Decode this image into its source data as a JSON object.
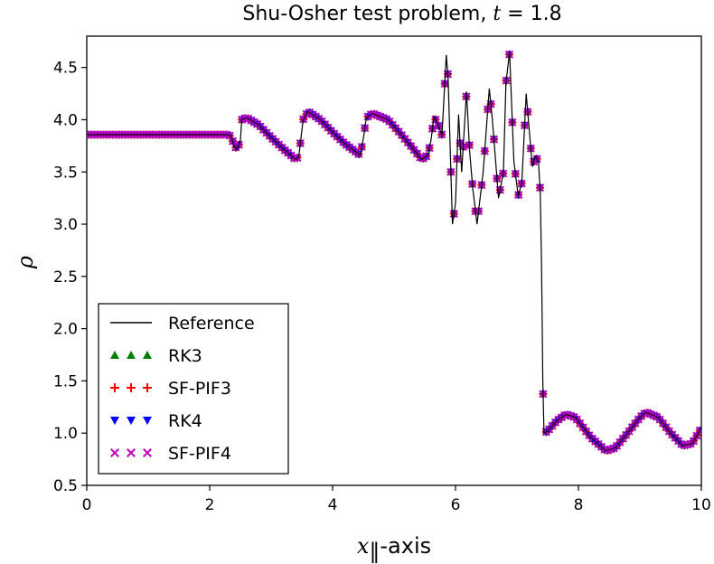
{
  "chart_data": {
    "type": "line",
    "title": {
      "text": "Shu-Osher test problem, ",
      "math": "t",
      "math_suffix": " = 1.8"
    },
    "xlabel": {
      "math": "x",
      "subscript": "∥",
      "text": "-axis"
    },
    "ylabel": "ρ",
    "xlim": [
      0,
      10
    ],
    "ylim": [
      0.5,
      4.8
    ],
    "xticks": [
      "0",
      "2",
      "4",
      "6",
      "8",
      "10"
    ],
    "yticks": [
      "0.5",
      "1.0",
      "1.5",
      "2.0",
      "2.5",
      "3.0",
      "3.5",
      "4.0",
      "4.5"
    ],
    "grid": false,
    "legend_position": "lower-left",
    "series": [
      {
        "name": "Reference",
        "style": "line",
        "color": "#000000"
      },
      {
        "name": "RK3",
        "style": "marker",
        "marker": "triangle-up",
        "color": "#008000"
      },
      {
        "name": "SF-PIF3",
        "style": "marker",
        "marker": "plus",
        "color": "#ff0000"
      },
      {
        "name": "RK4",
        "style": "marker",
        "marker": "triangle-down",
        "color": "#0000ff"
      },
      {
        "name": "SF-PIF4",
        "style": "marker",
        "marker": "x",
        "color": "#bf00bf"
      }
    ],
    "reference_points": [
      [
        0.0,
        3.857
      ],
      [
        2.1,
        3.857
      ],
      [
        2.3,
        3.857
      ],
      [
        2.35,
        3.84
      ],
      [
        2.4,
        3.75
      ],
      [
        2.45,
        3.72
      ],
      [
        2.5,
        3.8
      ],
      [
        2.52,
        4.0
      ],
      [
        2.6,
        4.02
      ],
      [
        2.8,
        3.95
      ],
      [
        3.0,
        3.83
      ],
      [
        3.2,
        3.72
      ],
      [
        3.4,
        3.62
      ],
      [
        3.45,
        3.65
      ],
      [
        3.52,
        4.0
      ],
      [
        3.6,
        4.08
      ],
      [
        3.8,
        4.0
      ],
      [
        4.0,
        3.88
      ],
      [
        4.2,
        3.77
      ],
      [
        4.45,
        3.66
      ],
      [
        4.5,
        3.82
      ],
      [
        4.55,
        4.02
      ],
      [
        4.65,
        4.06
      ],
      [
        4.9,
        4.0
      ],
      [
        5.1,
        3.87
      ],
      [
        5.3,
        3.73
      ],
      [
        5.45,
        3.62
      ],
      [
        5.55,
        3.66
      ],
      [
        5.6,
        3.8
      ],
      [
        5.65,
        4.03
      ],
      [
        5.72,
        3.95
      ],
      [
        5.78,
        3.85
      ],
      [
        5.85,
        4.62
      ],
      [
        5.88,
        4.4
      ],
      [
        5.95,
        3.0
      ],
      [
        6.0,
        3.2
      ],
      [
        6.05,
        4.05
      ],
      [
        6.1,
        3.5
      ],
      [
        6.18,
        4.27
      ],
      [
        6.23,
        3.7
      ],
      [
        6.28,
        3.35
      ],
      [
        6.35,
        3.0
      ],
      [
        6.45,
        3.5
      ],
      [
        6.55,
        4.3
      ],
      [
        6.6,
        4.0
      ],
      [
        6.7,
        3.25
      ],
      [
        6.78,
        3.5
      ],
      [
        6.82,
        4.35
      ],
      [
        6.88,
        4.65
      ],
      [
        6.95,
        3.6
      ],
      [
        7.02,
        3.27
      ],
      [
        7.08,
        3.4
      ],
      [
        7.15,
        4.25
      ],
      [
        7.2,
        3.9
      ],
      [
        7.25,
        3.55
      ],
      [
        7.3,
        3.65
      ],
      [
        7.35,
        3.6
      ],
      [
        7.38,
        3.3
      ],
      [
        7.4,
        2.6
      ],
      [
        7.42,
        1.5
      ],
      [
        7.44,
        1.0
      ],
      [
        7.5,
        1.02
      ],
      [
        7.65,
        1.12
      ],
      [
        7.8,
        1.18
      ],
      [
        7.95,
        1.15
      ],
      [
        8.2,
        0.96
      ],
      [
        8.45,
        0.83
      ],
      [
        8.6,
        0.86
      ],
      [
        8.8,
        1.0
      ],
      [
        9.0,
        1.15
      ],
      [
        9.1,
        1.2
      ],
      [
        9.3,
        1.15
      ],
      [
        9.5,
        1.0
      ],
      [
        9.7,
        0.88
      ],
      [
        9.85,
        0.9
      ],
      [
        10.0,
        1.05
      ]
    ]
  }
}
